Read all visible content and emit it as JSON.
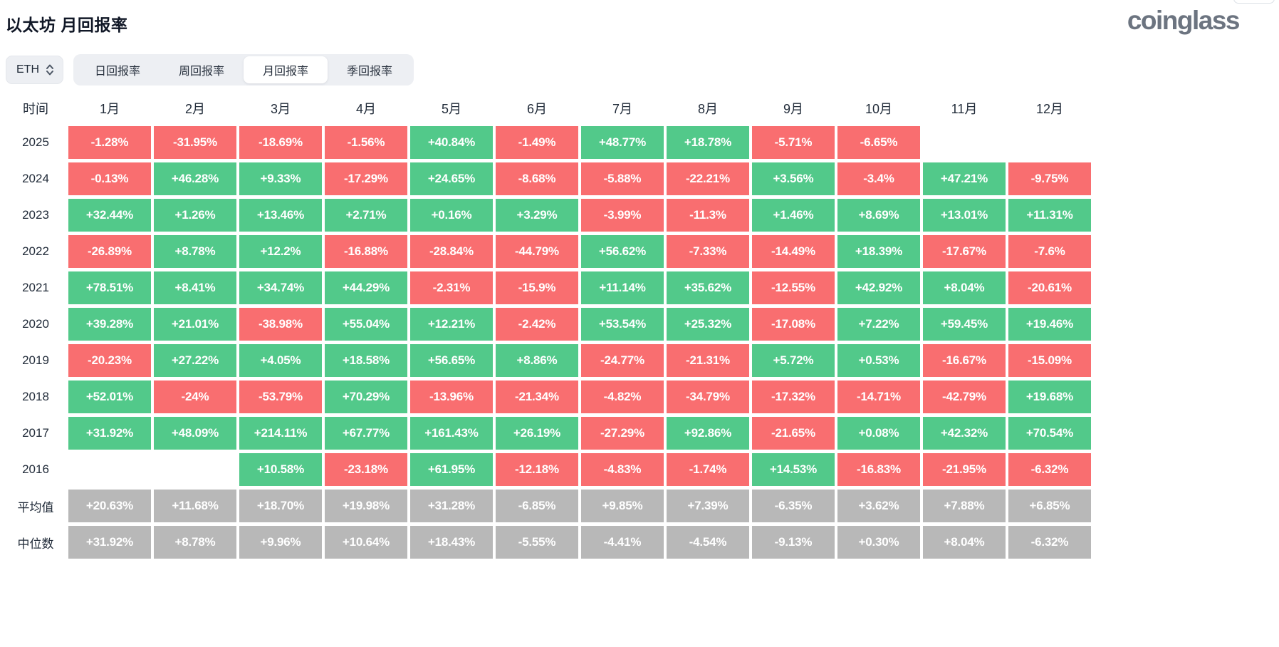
{
  "header": {
    "title": "以太坊 月回报率",
    "logo": "coinglass"
  },
  "controls": {
    "symbol": "ETH",
    "tabs": [
      {
        "id": "daily",
        "label": "日回报率",
        "active": false
      },
      {
        "id": "weekly",
        "label": "周回报率",
        "active": false
      },
      {
        "id": "monthly",
        "label": "月回报率",
        "active": true
      },
      {
        "id": "quarterly",
        "label": "季回报率",
        "active": false
      }
    ]
  },
  "chart_data": {
    "type": "heatmap",
    "title": "以太坊 月回报率",
    "columns": [
      "时间",
      "1月",
      "2月",
      "3月",
      "4月",
      "5月",
      "6月",
      "7月",
      "8月",
      "9月",
      "10月",
      "11月",
      "12月"
    ],
    "rows": [
      {
        "label": "2025",
        "values": [
          "-1.28%",
          "-31.95%",
          "-18.69%",
          "-1.56%",
          "+40.84%",
          "-1.49%",
          "+48.77%",
          "+18.78%",
          "-5.71%",
          "-6.65%",
          "",
          ""
        ]
      },
      {
        "label": "2024",
        "values": [
          "-0.13%",
          "+46.28%",
          "+9.33%",
          "-17.29%",
          "+24.65%",
          "-8.68%",
          "-5.88%",
          "-22.21%",
          "+3.56%",
          "-3.4%",
          "+47.21%",
          "-9.75%"
        ]
      },
      {
        "label": "2023",
        "values": [
          "+32.44%",
          "+1.26%",
          "+13.46%",
          "+2.71%",
          "+0.16%",
          "+3.29%",
          "-3.99%",
          "-11.3%",
          "+1.46%",
          "+8.69%",
          "+13.01%",
          "+11.31%"
        ]
      },
      {
        "label": "2022",
        "values": [
          "-26.89%",
          "+8.78%",
          "+12.2%",
          "-16.88%",
          "-28.84%",
          "-44.79%",
          "+56.62%",
          "-7.33%",
          "-14.49%",
          "+18.39%",
          "-17.67%",
          "-7.6%"
        ]
      },
      {
        "label": "2021",
        "values": [
          "+78.51%",
          "+8.41%",
          "+34.74%",
          "+44.29%",
          "-2.31%",
          "-15.9%",
          "+11.14%",
          "+35.62%",
          "-12.55%",
          "+42.92%",
          "+8.04%",
          "-20.61%"
        ]
      },
      {
        "label": "2020",
        "values": [
          "+39.28%",
          "+21.01%",
          "-38.98%",
          "+55.04%",
          "+12.21%",
          "-2.42%",
          "+53.54%",
          "+25.32%",
          "-17.08%",
          "+7.22%",
          "+59.45%",
          "+19.46%"
        ]
      },
      {
        "label": "2019",
        "values": [
          "-20.23%",
          "+27.22%",
          "+4.05%",
          "+18.58%",
          "+56.65%",
          "+8.86%",
          "-24.77%",
          "-21.31%",
          "+5.72%",
          "+0.53%",
          "-16.67%",
          "-15.09%"
        ]
      },
      {
        "label": "2018",
        "values": [
          "+52.01%",
          "-24%",
          "-53.79%",
          "+70.29%",
          "-13.96%",
          "-21.34%",
          "-4.82%",
          "-34.79%",
          "-17.32%",
          "-14.71%",
          "-42.79%",
          "+19.68%"
        ]
      },
      {
        "label": "2017",
        "values": [
          "+31.92%",
          "+48.09%",
          "+214.11%",
          "+67.77%",
          "+161.43%",
          "+26.19%",
          "-27.29%",
          "+92.86%",
          "-21.65%",
          "+0.08%",
          "+42.32%",
          "+70.54%"
        ]
      },
      {
        "label": "2016",
        "values": [
          "",
          "",
          "+10.58%",
          "-23.18%",
          "+61.95%",
          "-12.18%",
          "-4.83%",
          "-1.74%",
          "+14.53%",
          "-16.83%",
          "-21.95%",
          "-6.32%"
        ]
      },
      {
        "label": "平均值",
        "gray": true,
        "values": [
          "+20.63%",
          "+11.68%",
          "+18.70%",
          "+19.98%",
          "+31.28%",
          "-6.85%",
          "+9.85%",
          "+7.39%",
          "-6.35%",
          "+3.62%",
          "+7.88%",
          "+6.85%"
        ]
      },
      {
        "label": "中位数",
        "gray": true,
        "values": [
          "+31.92%",
          "+8.78%",
          "+9.96%",
          "+10.64%",
          "+18.43%",
          "-5.55%",
          "-4.41%",
          "-4.54%",
          "-9.13%",
          "+0.30%",
          "+8.04%",
          "-6.32%"
        ]
      }
    ],
    "colors": {
      "positive": "#52c98a",
      "negative": "#f96e70",
      "summary": "#b8b8b8"
    }
  }
}
